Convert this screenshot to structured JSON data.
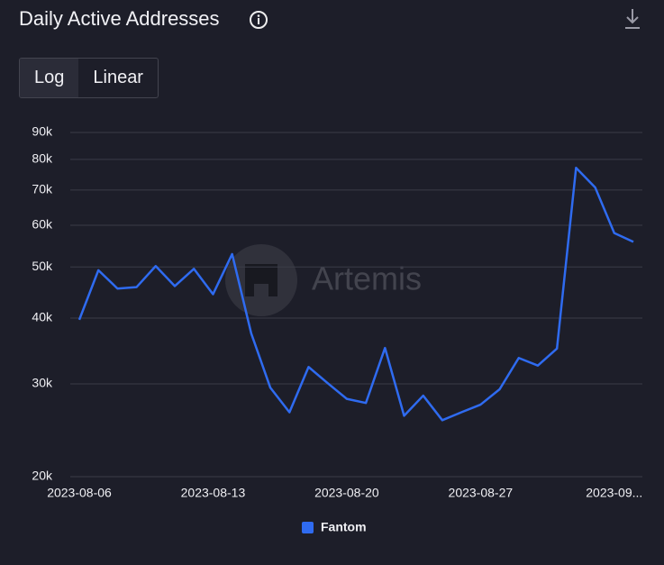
{
  "header": {
    "title": "Daily Active Addresses"
  },
  "scale_toggle": {
    "options": [
      "Log",
      "Linear"
    ],
    "active": 0
  },
  "watermark": "Artemis",
  "chart_data": {
    "type": "line",
    "yscale": "log",
    "x": [
      "2023-08-06",
      "2023-08-07",
      "2023-08-08",
      "2023-08-09",
      "2023-08-10",
      "2023-08-11",
      "2023-08-12",
      "2023-08-13",
      "2023-08-14",
      "2023-08-15",
      "2023-08-16",
      "2023-08-17",
      "2023-08-18",
      "2023-08-19",
      "2023-08-20",
      "2023-08-21",
      "2023-08-22",
      "2023-08-23",
      "2023-08-24",
      "2023-08-25",
      "2023-08-26",
      "2023-08-27",
      "2023-08-28",
      "2023-08-29",
      "2023-08-30",
      "2023-08-31",
      "2023-09-01",
      "2023-09-02",
      "2023-09-03",
      "2023-09-04"
    ],
    "series": [
      {
        "name": "Fantom",
        "color": "#2f6bf0",
        "values": [
          39700,
          49300,
          45500,
          45800,
          50200,
          46000,
          49600,
          44400,
          52900,
          37400,
          29500,
          26500,
          32300,
          30100,
          28100,
          27600,
          35100,
          26100,
          28500,
          25600,
          26500,
          27400,
          29300,
          33600,
          32500,
          35000,
          77100,
          70800,
          58000,
          55800
        ]
      }
    ],
    "ylim": [
      20000,
      90000
    ],
    "yticks": [
      {
        "value": 20000,
        "label": "20k"
      },
      {
        "value": 30000,
        "label": "30k"
      },
      {
        "value": 40000,
        "label": "40k"
      },
      {
        "value": 50000,
        "label": "50k"
      },
      {
        "value": 60000,
        "label": "60k"
      },
      {
        "value": 70000,
        "label": "70k"
      },
      {
        "value": 80000,
        "label": "80k"
      },
      {
        "value": 90000,
        "label": "90k"
      }
    ],
    "xticks": [
      "2023-08-06",
      "2023-08-13",
      "2023-08-20",
      "2023-08-27",
      {
        "value": "2023-09-03",
        "label": "2023-09..."
      }
    ],
    "grid": true,
    "legend": "bottom"
  }
}
